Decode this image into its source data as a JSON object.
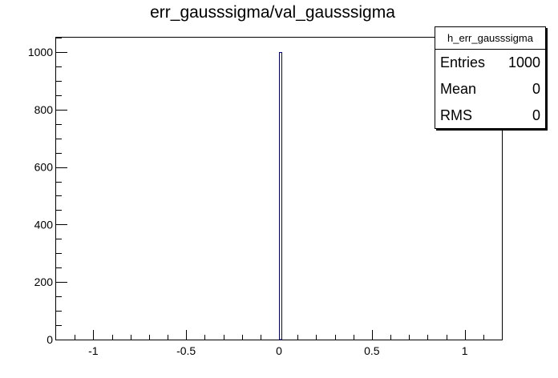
{
  "chart_data": {
    "type": "bar",
    "title": "err_gausssigma/val_gausssigma",
    "xlim": [
      -1.2,
      1.2
    ],
    "ylim": [
      0,
      1050
    ],
    "x_ticks": [
      "-1",
      "-0.5",
      "0",
      "0.5",
      "1"
    ],
    "y_ticks": [
      "0",
      "200",
      "400",
      "600",
      "800",
      "1000"
    ],
    "bins": [
      {
        "x_low": 0.0,
        "x_high": 0.012,
        "value": 1000
      }
    ],
    "bar_color": "#00008b",
    "grid": false,
    "legend": "top-right"
  },
  "stats": {
    "name": "h_err_gausssigma",
    "rows": [
      {
        "key": "Entries",
        "value": "1000"
      },
      {
        "key": "Mean",
        "value": "0"
      },
      {
        "key": "RMS",
        "value": "0"
      }
    ]
  }
}
